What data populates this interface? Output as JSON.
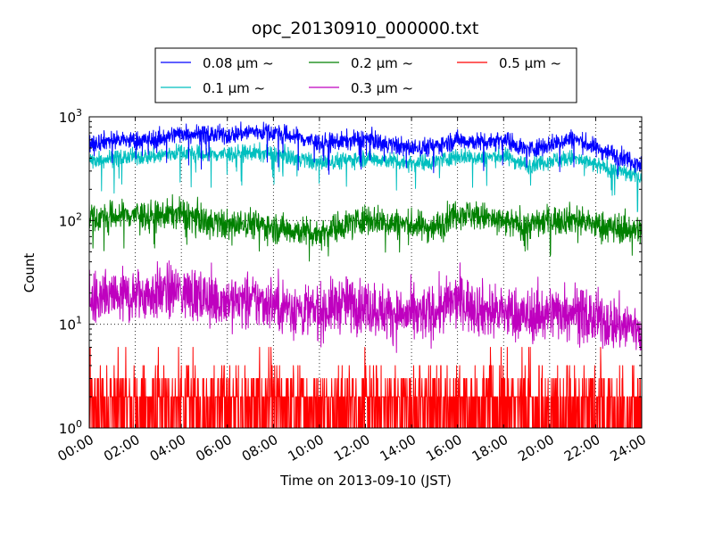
{
  "chart_data": {
    "type": "line",
    "title": "opc_20130910_000000.txt",
    "xlabel": "Time on 2013-09-10 (JST)",
    "ylabel": "Count",
    "yscale": "log",
    "ylim": [
      1,
      1000
    ],
    "y_tick_bases": [
      "10",
      "10",
      "10",
      "10"
    ],
    "y_tick_exponents": [
      "0",
      "1",
      "2",
      "3"
    ],
    "xlim_hours": [
      0,
      24
    ],
    "x_tick_labels": [
      "00:00",
      "02:00",
      "04:00",
      "06:00",
      "08:00",
      "10:00",
      "12:00",
      "14:00",
      "16:00",
      "18:00",
      "20:00",
      "22:00",
      "24:00"
    ],
    "grid": true,
    "legend_position": "top-center",
    "x_hours": [
      0,
      1,
      2,
      3,
      4,
      5,
      6,
      7,
      8,
      9,
      10,
      11,
      12,
      13,
      14,
      15,
      16,
      17,
      18,
      19,
      20,
      21,
      22,
      23,
      24
    ],
    "series": [
      {
        "name": "0.08 μm ~",
        "color": "#0000ff",
        "typical": [
          560,
          600,
          590,
          610,
          700,
          680,
          660,
          720,
          710,
          640,
          560,
          580,
          620,
          540,
          500,
          520,
          600,
          570,
          610,
          480,
          540,
          620,
          500,
          420,
          350
        ],
        "noise_frac": 0.1
      },
      {
        "name": "0.1 μm ~",
        "color": "#00bfbf",
        "typical": [
          380,
          400,
          410,
          420,
          460,
          430,
          440,
          450,
          440,
          400,
          360,
          380,
          400,
          380,
          360,
          370,
          420,
          400,
          420,
          340,
          380,
          400,
          340,
          300,
          260
        ],
        "noise_frac": 0.09
      },
      {
        "name": "0.2 μm ~",
        "color": "#008000",
        "typical": [
          105,
          110,
          115,
          110,
          120,
          100,
          90,
          95,
          85,
          80,
          75,
          90,
          105,
          95,
          90,
          85,
          120,
          110,
          95,
          90,
          100,
          105,
          90,
          85,
          80
        ],
        "noise_frac": 0.16
      },
      {
        "name": "0.3 μm ~",
        "color": "#bf00bf",
        "typical": [
          17,
          18,
          19,
          20,
          21,
          18,
          17,
          17,
          16,
          14,
          13,
          16,
          15,
          13,
          12,
          13,
          17,
          14,
          13,
          12,
          13,
          14,
          11,
          10,
          9
        ],
        "noise_frac": 0.3
      },
      {
        "name": "0.5 μm ~",
        "color": "#ff0000",
        "typical": [
          1.5,
          1.6,
          1.7,
          1.8,
          1.8,
          1.7,
          1.6,
          1.6,
          1.5,
          1.5,
          1.4,
          1.5,
          1.5,
          1.5,
          1.4,
          1.5,
          1.6,
          1.5,
          1.5,
          1.4,
          1.5,
          1.5,
          1.4,
          1.4,
          1.3
        ],
        "noise_frac": 0.8,
        "integer_counts": true
      }
    ]
  }
}
